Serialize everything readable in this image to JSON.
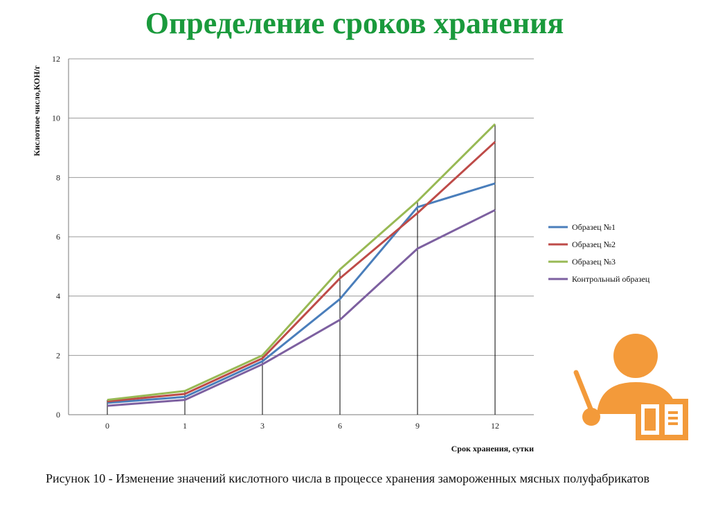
{
  "slide": {
    "title": "Определение сроков хранения",
    "caption": "Рисунок 10 - Изменение значений кислотного числа в процессе хранения замороженных мясных полуфабрикатов"
  },
  "icons": {
    "presenter": "teacher-with-pointer-and-book-icon",
    "color": "#f39a3a"
  },
  "chart_data": {
    "type": "line",
    "title": "",
    "xlabel": "Срок хранения, сутки",
    "ylabel": "Кислотное число,КОН/г",
    "categories": [
      "0",
      "1",
      "3",
      "6",
      "9",
      "12"
    ],
    "ylim": [
      0,
      12
    ],
    "yticks": [
      0,
      2,
      4,
      6,
      8,
      10,
      12
    ],
    "grid": true,
    "drop_lines": true,
    "legend_position": "right",
    "series": [
      {
        "name": "Образец №1",
        "color": "#4a7ebb",
        "values": [
          0.4,
          0.6,
          1.8,
          3.9,
          7.0,
          7.8
        ]
      },
      {
        "name": "Образец №2",
        "color": "#be4b48",
        "values": [
          0.45,
          0.7,
          1.9,
          4.6,
          6.8,
          9.2
        ]
      },
      {
        "name": "Образец №3",
        "color": "#98b954",
        "values": [
          0.5,
          0.8,
          2.0,
          4.9,
          7.2,
          9.8
        ]
      },
      {
        "name": "Контрольный образец",
        "color": "#7d60a0",
        "values": [
          0.3,
          0.5,
          1.7,
          3.2,
          5.6,
          6.9
        ]
      }
    ]
  }
}
